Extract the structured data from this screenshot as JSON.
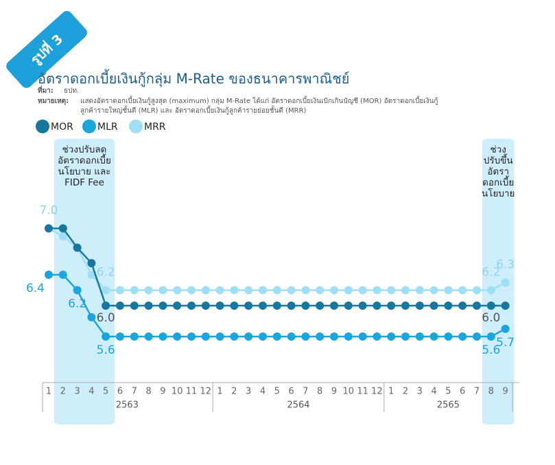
{
  "chart_data": {
    "type": "line",
    "figure_label": "รูปที่ 3",
    "title": "อัตราดอกเบี้ยเงินกู้กลุ่ม M-Rate ของธนาคารพาณิชย์",
    "source_label": "ที่มา:",
    "source": "ธปท.",
    "note_label": "หมายเหตุ:",
    "note": [
      "แสดงอัตราดอกเบี้ยเงินกู้สูงสุด (maximum) กลุ่ม M-Rate ได้แก่ อัตราดอกเบี้ยเงินเบิกเกินบัญชี (MOR) อัตราดอกเบี้ยเงินกู้",
      "ลูกค้ารายใหญ่ชั้นดี (MLR) และ อัตราดอกเบี้ยเงินกู้ลูกค้ารายย่อยชั้นดี (MRR)"
    ],
    "categories": [
      "1",
      "2",
      "3",
      "4",
      "5",
      "6",
      "7",
      "8",
      "9",
      "10",
      "11",
      "12",
      "1",
      "2",
      "3",
      "4",
      "5",
      "6",
      "7",
      "8",
      "9",
      "10",
      "11",
      "12",
      "1",
      "2",
      "3",
      "4",
      "5",
      "6",
      "7",
      "8",
      "9"
    ],
    "x_groups": [
      {
        "label": "2563",
        "span": 12
      },
      {
        "label": "2564",
        "span": 12
      },
      {
        "label": "2565",
        "span": 9
      }
    ],
    "highlights": [
      {
        "from": 1,
        "to": 4,
        "lines": [
          "ช่วงปรับลด",
          "อัตราดอกเบี้ย",
          "นโยบาย และ",
          "FIDF Fee"
        ]
      },
      {
        "from": 31,
        "to": 32,
        "lines": [
          "ช่วง",
          "ปรับขึ้น",
          "อัตรา",
          "ดอกเบี้ย",
          "นโยบาย"
        ]
      }
    ],
    "ylim": [
      5.0,
      7.5
    ],
    "series": [
      {
        "name": "MOR",
        "color": "#17789f",
        "label_color": "#555555",
        "values": [
          7.0,
          7.0,
          6.75,
          6.55,
          6.0,
          6.0,
          6.0,
          6.0,
          6.0,
          6.0,
          6.0,
          6.0,
          6.0,
          6.0,
          6.0,
          6.0,
          6.0,
          6.0,
          6.0,
          6.0,
          6.0,
          6.0,
          6.0,
          6.0,
          6.0,
          6.0,
          6.0,
          6.0,
          6.0,
          6.0,
          6.0,
          6.0,
          6.0
        ],
        "value_labels": [
          null,
          null,
          null,
          null,
          "6.0",
          null,
          null,
          null,
          null,
          null,
          null,
          null,
          null,
          null,
          null,
          null,
          null,
          null,
          null,
          null,
          null,
          null,
          null,
          null,
          null,
          null,
          null,
          null,
          null,
          null,
          null,
          "6.0",
          null
        ]
      },
      {
        "name": "MLR",
        "color": "#1aa6dc",
        "label_color": "#1aa6dc",
        "values": [
          6.4,
          6.4,
          6.2,
          5.85,
          5.6,
          5.6,
          5.6,
          5.6,
          5.6,
          5.6,
          5.6,
          5.6,
          5.6,
          5.6,
          5.6,
          5.6,
          5.6,
          5.6,
          5.6,
          5.6,
          5.6,
          5.6,
          5.6,
          5.6,
          5.6,
          5.6,
          5.6,
          5.6,
          5.6,
          5.6,
          5.6,
          5.6,
          5.7
        ],
        "value_labels": [
          "6.4",
          null,
          "6.2",
          null,
          "5.6",
          null,
          null,
          null,
          null,
          null,
          null,
          null,
          null,
          null,
          null,
          null,
          null,
          null,
          null,
          null,
          null,
          null,
          null,
          null,
          null,
          null,
          null,
          null,
          null,
          null,
          null,
          "5.6",
          "5.7"
        ]
      },
      {
        "name": "MRR",
        "color": "#9fdff6",
        "label_color": "#8fd3ee",
        "values": [
          7.0,
          6.9,
          6.75,
          6.4,
          6.2,
          6.2,
          6.2,
          6.2,
          6.2,
          6.2,
          6.2,
          6.2,
          6.2,
          6.2,
          6.2,
          6.2,
          6.2,
          6.2,
          6.2,
          6.2,
          6.2,
          6.2,
          6.2,
          6.2,
          6.2,
          6.2,
          6.2,
          6.2,
          6.2,
          6.2,
          6.2,
          6.2,
          6.3
        ],
        "value_labels": [
          "7.0",
          null,
          null,
          null,
          "6.2",
          null,
          null,
          null,
          null,
          null,
          null,
          null,
          null,
          null,
          null,
          null,
          null,
          null,
          null,
          null,
          null,
          null,
          null,
          null,
          null,
          null,
          null,
          null,
          null,
          null,
          null,
          "6.2",
          "6.3"
        ]
      }
    ]
  }
}
